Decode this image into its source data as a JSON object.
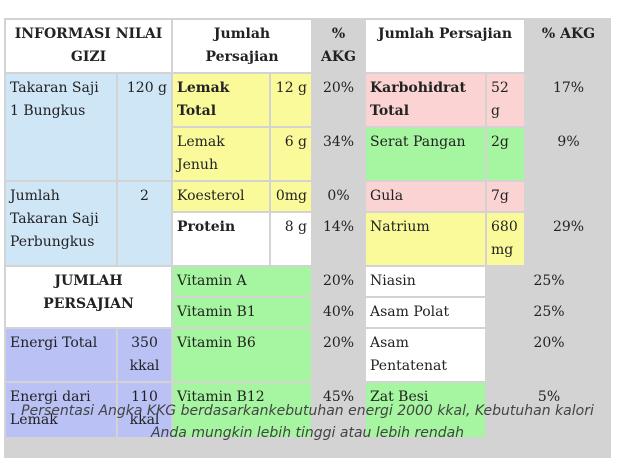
{
  "headers": {
    "info": "INFORMASI NILAI GIZI",
    "serving1": "Jumlah Persajian",
    "akg1": "% AKG",
    "serving2": "Jumlah Persajian",
    "akg2": "% AKG",
    "jumlah_persajian": "JUMLAH PERSAJIAN"
  },
  "left": {
    "takaran_label": "Takaran Saji 1 Bungkus",
    "takaran_value": "120 g",
    "jumlah_label": "Jumlah Takaran Saji Perbungkus",
    "jumlah_value": "2",
    "energi_total_label": "Energi Total",
    "energi_total_value": "350 kkal",
    "energi_lemak_label": "Energi dari Lemak",
    "energi_lemak_value": "110 kkal"
  },
  "middle": [
    {
      "name": "Lemak Total",
      "amount": "12 g",
      "akg": "20%"
    },
    {
      "name": "Lemak Jenuh",
      "amount": "6 g",
      "akg": "34%"
    },
    {
      "name": "Koesterol",
      "amount": "0mg",
      "akg": "0%"
    },
    {
      "name": "Protein",
      "amount": "8 g",
      "akg": "14%"
    },
    {
      "name": "Vitamin A",
      "akg": "20%"
    },
    {
      "name": "Vitamin B1",
      "akg": "40%"
    },
    {
      "name": "Vitamin B6",
      "akg": "20%"
    },
    {
      "name": "Vitamin B12",
      "akg": "45%"
    }
  ],
  "right": [
    {
      "name": "Karbohidrat Total",
      "amount": "52 g",
      "akg": "17%"
    },
    {
      "name": "Serat Pangan",
      "amount": "2g",
      "akg": "9%"
    },
    {
      "name": "Gula",
      "amount": "7g",
      "akg": ""
    },
    {
      "name": "Natrium",
      "amount": "680 mg",
      "akg": "29%"
    },
    {
      "name": "Niasin",
      "akg": "25%"
    },
    {
      "name": "Asam Polat",
      "akg": "25%"
    },
    {
      "name": "Asam Pentatenat",
      "akg": "20%"
    },
    {
      "name": "Zat Besi",
      "akg": "5%"
    }
  ],
  "footnote": "Persentasi Angka KKG berdasarkankebutuhan energi 2000 kkal, Kebutuhan kalori Anda mungkin lebih tinggi atau lebih rendah",
  "colors": {
    "blue": "#cfe6f7",
    "purple": "#b9c1f5",
    "yellow": "#fbfa9a",
    "pink": "#fbd3d3",
    "green": "#a6f5a0",
    "gray": "#d3d3d3"
  }
}
